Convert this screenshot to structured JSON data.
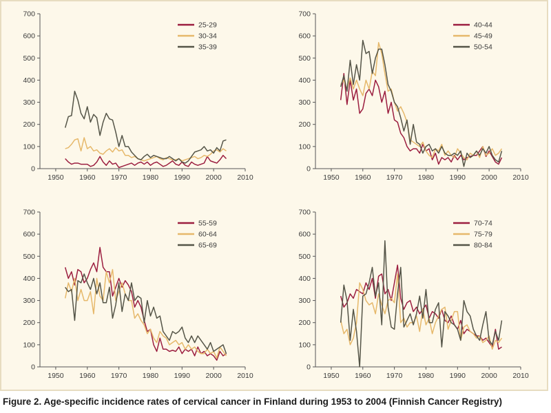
{
  "caption": "Figure 2. Age-specific incidence rates of cervical cancer in Finland during 1953 to 2004 (Finnish Cancer Registry)",
  "colors": {
    "series1": "#9b1d3f",
    "series2": "#e6b86a",
    "series3": "#545447",
    "axis": "#555555"
  },
  "chart_data": [
    {
      "type": "line",
      "x_start": 1953,
      "xlim": [
        1945,
        2010
      ],
      "ylim": [
        0,
        700
      ],
      "xticks": [
        1950,
        1960,
        1970,
        1980,
        1990,
        2000,
        2010
      ],
      "yticks": [
        0,
        100,
        200,
        300,
        400,
        500,
        600,
        700
      ],
      "legend_position": "top-right",
      "series": [
        {
          "name": "25-29",
          "values": [
            45,
            30,
            20,
            25,
            25,
            20,
            20,
            20,
            10,
            15,
            30,
            55,
            30,
            15,
            35,
            20,
            25,
            5,
            10,
            15,
            20,
            25,
            15,
            25,
            30,
            20,
            30,
            15,
            25,
            30,
            20,
            10,
            15,
            25,
            35,
            20,
            15,
            30,
            15,
            10,
            30,
            20,
            15,
            20,
            25,
            55,
            35,
            30,
            25,
            40,
            60,
            45
          ]
        },
        {
          "name": "30-34",
          "values": [
            90,
            95,
            110,
            130,
            135,
            80,
            140,
            90,
            100,
            80,
            85,
            70,
            65,
            80,
            90,
            75,
            95,
            80,
            85,
            60,
            60,
            50,
            55,
            45,
            40,
            35,
            40,
            45,
            50,
            55,
            45,
            40,
            50,
            45,
            40,
            40,
            45,
            35,
            40,
            45,
            50,
            55,
            45,
            50,
            60,
            55,
            65,
            80,
            85,
            75,
            90,
            80
          ]
        },
        {
          "name": "35-39",
          "values": [
            185,
            235,
            240,
            350,
            310,
            250,
            225,
            280,
            210,
            245,
            230,
            150,
            210,
            250,
            225,
            220,
            165,
            100,
            150,
            100,
            100,
            75,
            60,
            45,
            40,
            55,
            65,
            50,
            60,
            55,
            50,
            45,
            45,
            55,
            45,
            35,
            45,
            30,
            25,
            35,
            55,
            75,
            80,
            85,
            100,
            80,
            85,
            70,
            95,
            80,
            125,
            130
          ]
        }
      ]
    },
    {
      "type": "line",
      "x_start": 1953,
      "xlim": [
        1945,
        2010
      ],
      "ylim": [
        0,
        700
      ],
      "xticks": [
        1950,
        1960,
        1970,
        1980,
        1990,
        2000,
        2010
      ],
      "yticks": [
        0,
        100,
        200,
        300,
        400,
        500,
        600,
        700
      ],
      "legend_position": "top-right",
      "series": [
        {
          "name": "40-44",
          "values": [
            310,
            430,
            290,
            400,
            310,
            360,
            250,
            270,
            340,
            360,
            330,
            400,
            370,
            300,
            350,
            250,
            300,
            220,
            210,
            160,
            140,
            100,
            80,
            90,
            90,
            70,
            110,
            80,
            90,
            40,
            70,
            20,
            50,
            40,
            50,
            30,
            60,
            40,
            60,
            40,
            50,
            55,
            60,
            60,
            80,
            100,
            55,
            80,
            55,
            30,
            20,
            50
          ]
        },
        {
          "name": "45-49",
          "values": [
            380,
            400,
            360,
            410,
            360,
            400,
            360,
            330,
            400,
            360,
            440,
            420,
            570,
            520,
            430,
            350,
            360,
            300,
            260,
            280,
            250,
            210,
            130,
            120,
            110,
            100,
            120,
            80,
            60,
            50,
            90,
            80,
            110,
            60,
            80,
            60,
            50,
            90,
            70,
            50,
            40,
            70,
            60,
            80,
            50,
            100,
            60,
            70,
            90,
            60,
            70,
            90
          ]
        },
        {
          "name": "50-54",
          "values": [
            370,
            420,
            350,
            490,
            380,
            470,
            400,
            580,
            520,
            530,
            430,
            500,
            540,
            540,
            470,
            380,
            350,
            300,
            280,
            230,
            170,
            220,
            110,
            200,
            120,
            110,
            70,
            100,
            110,
            80,
            90,
            70,
            100,
            70,
            60,
            60,
            70,
            60,
            80,
            10,
            70,
            50,
            60,
            80,
            60,
            90,
            70,
            100,
            60,
            40,
            30,
            80
          ]
        }
      ]
    },
    {
      "type": "line",
      "x_start": 1953,
      "xlim": [
        1945,
        2010
      ],
      "ylim": [
        0,
        700
      ],
      "xticks": [
        1950,
        1960,
        1970,
        1980,
        1990,
        2000,
        2010
      ],
      "yticks": [
        0,
        100,
        200,
        300,
        400,
        500,
        600,
        700
      ],
      "legend_position": "top-right",
      "series": [
        {
          "name": "55-59",
          "values": [
            450,
            400,
            430,
            370,
            440,
            430,
            380,
            400,
            440,
            470,
            430,
            540,
            450,
            430,
            430,
            320,
            360,
            400,
            360,
            390,
            370,
            340,
            270,
            300,
            270,
            210,
            160,
            170,
            100,
            70,
            130,
            80,
            80,
            70,
            75,
            70,
            90,
            60,
            80,
            70,
            80,
            50,
            90,
            60,
            70,
            50,
            60,
            50,
            30,
            70,
            50,
            60
          ]
        },
        {
          "name": "60-64",
          "values": [
            310,
            380,
            340,
            400,
            300,
            350,
            300,
            300,
            340,
            240,
            400,
            320,
            300,
            430,
            380,
            440,
            300,
            340,
            380,
            330,
            300,
            300,
            220,
            240,
            210,
            190,
            150,
            170,
            130,
            110,
            160,
            140,
            130,
            100,
            110,
            120,
            100,
            110,
            80,
            100,
            80,
            90,
            70,
            60,
            60,
            80,
            60,
            70,
            40,
            90,
            70,
            50
          ]
        },
        {
          "name": "65-69",
          "values": [
            360,
            340,
            350,
            210,
            390,
            380,
            420,
            380,
            350,
            400,
            330,
            380,
            290,
            290,
            360,
            220,
            280,
            380,
            250,
            330,
            300,
            380,
            300,
            320,
            310,
            200,
            300,
            230,
            270,
            220,
            230,
            160,
            140,
            120,
            160,
            150,
            160,
            180,
            130,
            110,
            140,
            110,
            140,
            120,
            100,
            80,
            110,
            70,
            80,
            90,
            100,
            60
          ]
        }
      ]
    },
    {
      "type": "line",
      "x_start": 1953,
      "xlim": [
        1945,
        2010
      ],
      "ylim": [
        0,
        700
      ],
      "xticks": [
        1950,
        1960,
        1970,
        1980,
        1990,
        2000,
        2010
      ],
      "yticks": [
        0,
        100,
        200,
        300,
        400,
        500,
        600,
        700
      ],
      "legend_position": "top-right",
      "series": [
        {
          "name": "70-74",
          "values": [
            320,
            270,
            290,
            330,
            310,
            350,
            340,
            330,
            380,
            350,
            400,
            310,
            410,
            420,
            330,
            350,
            300,
            380,
            460,
            310,
            260,
            290,
            300,
            250,
            270,
            240,
            260,
            280,
            220,
            250,
            240,
            220,
            260,
            210,
            200,
            230,
            190,
            170,
            210,
            150,
            170,
            160,
            150,
            140,
            140,
            120,
            130,
            110,
            90,
            170,
            80,
            90
          ]
        },
        {
          "name": "75-79",
          "values": [
            210,
            150,
            170,
            100,
            130,
            200,
            380,
            350,
            300,
            280,
            290,
            240,
            330,
            280,
            240,
            300,
            310,
            290,
            420,
            200,
            220,
            180,
            200,
            200,
            230,
            160,
            260,
            190,
            220,
            150,
            200,
            230,
            260,
            270,
            170,
            210,
            250,
            250,
            120,
            180,
            190,
            160,
            150,
            130,
            140,
            110,
            120,
            140,
            80,
            120,
            110,
            130
          ]
        },
        {
          "name": "80-84",
          "values": [
            200,
            370,
            300,
            120,
            260,
            160,
            0,
            320,
            330,
            380,
            450,
            320,
            380,
            190,
            570,
            270,
            180,
            170,
            330,
            450,
            180,
            210,
            240,
            190,
            240,
            320,
            220,
            350,
            200,
            200,
            260,
            290,
            90,
            250,
            230,
            200,
            190,
            170,
            120,
            300,
            250,
            230,
            170,
            140,
            120,
            190,
            250,
            120,
            100,
            160,
            120,
            210
          ]
        }
      ]
    }
  ]
}
